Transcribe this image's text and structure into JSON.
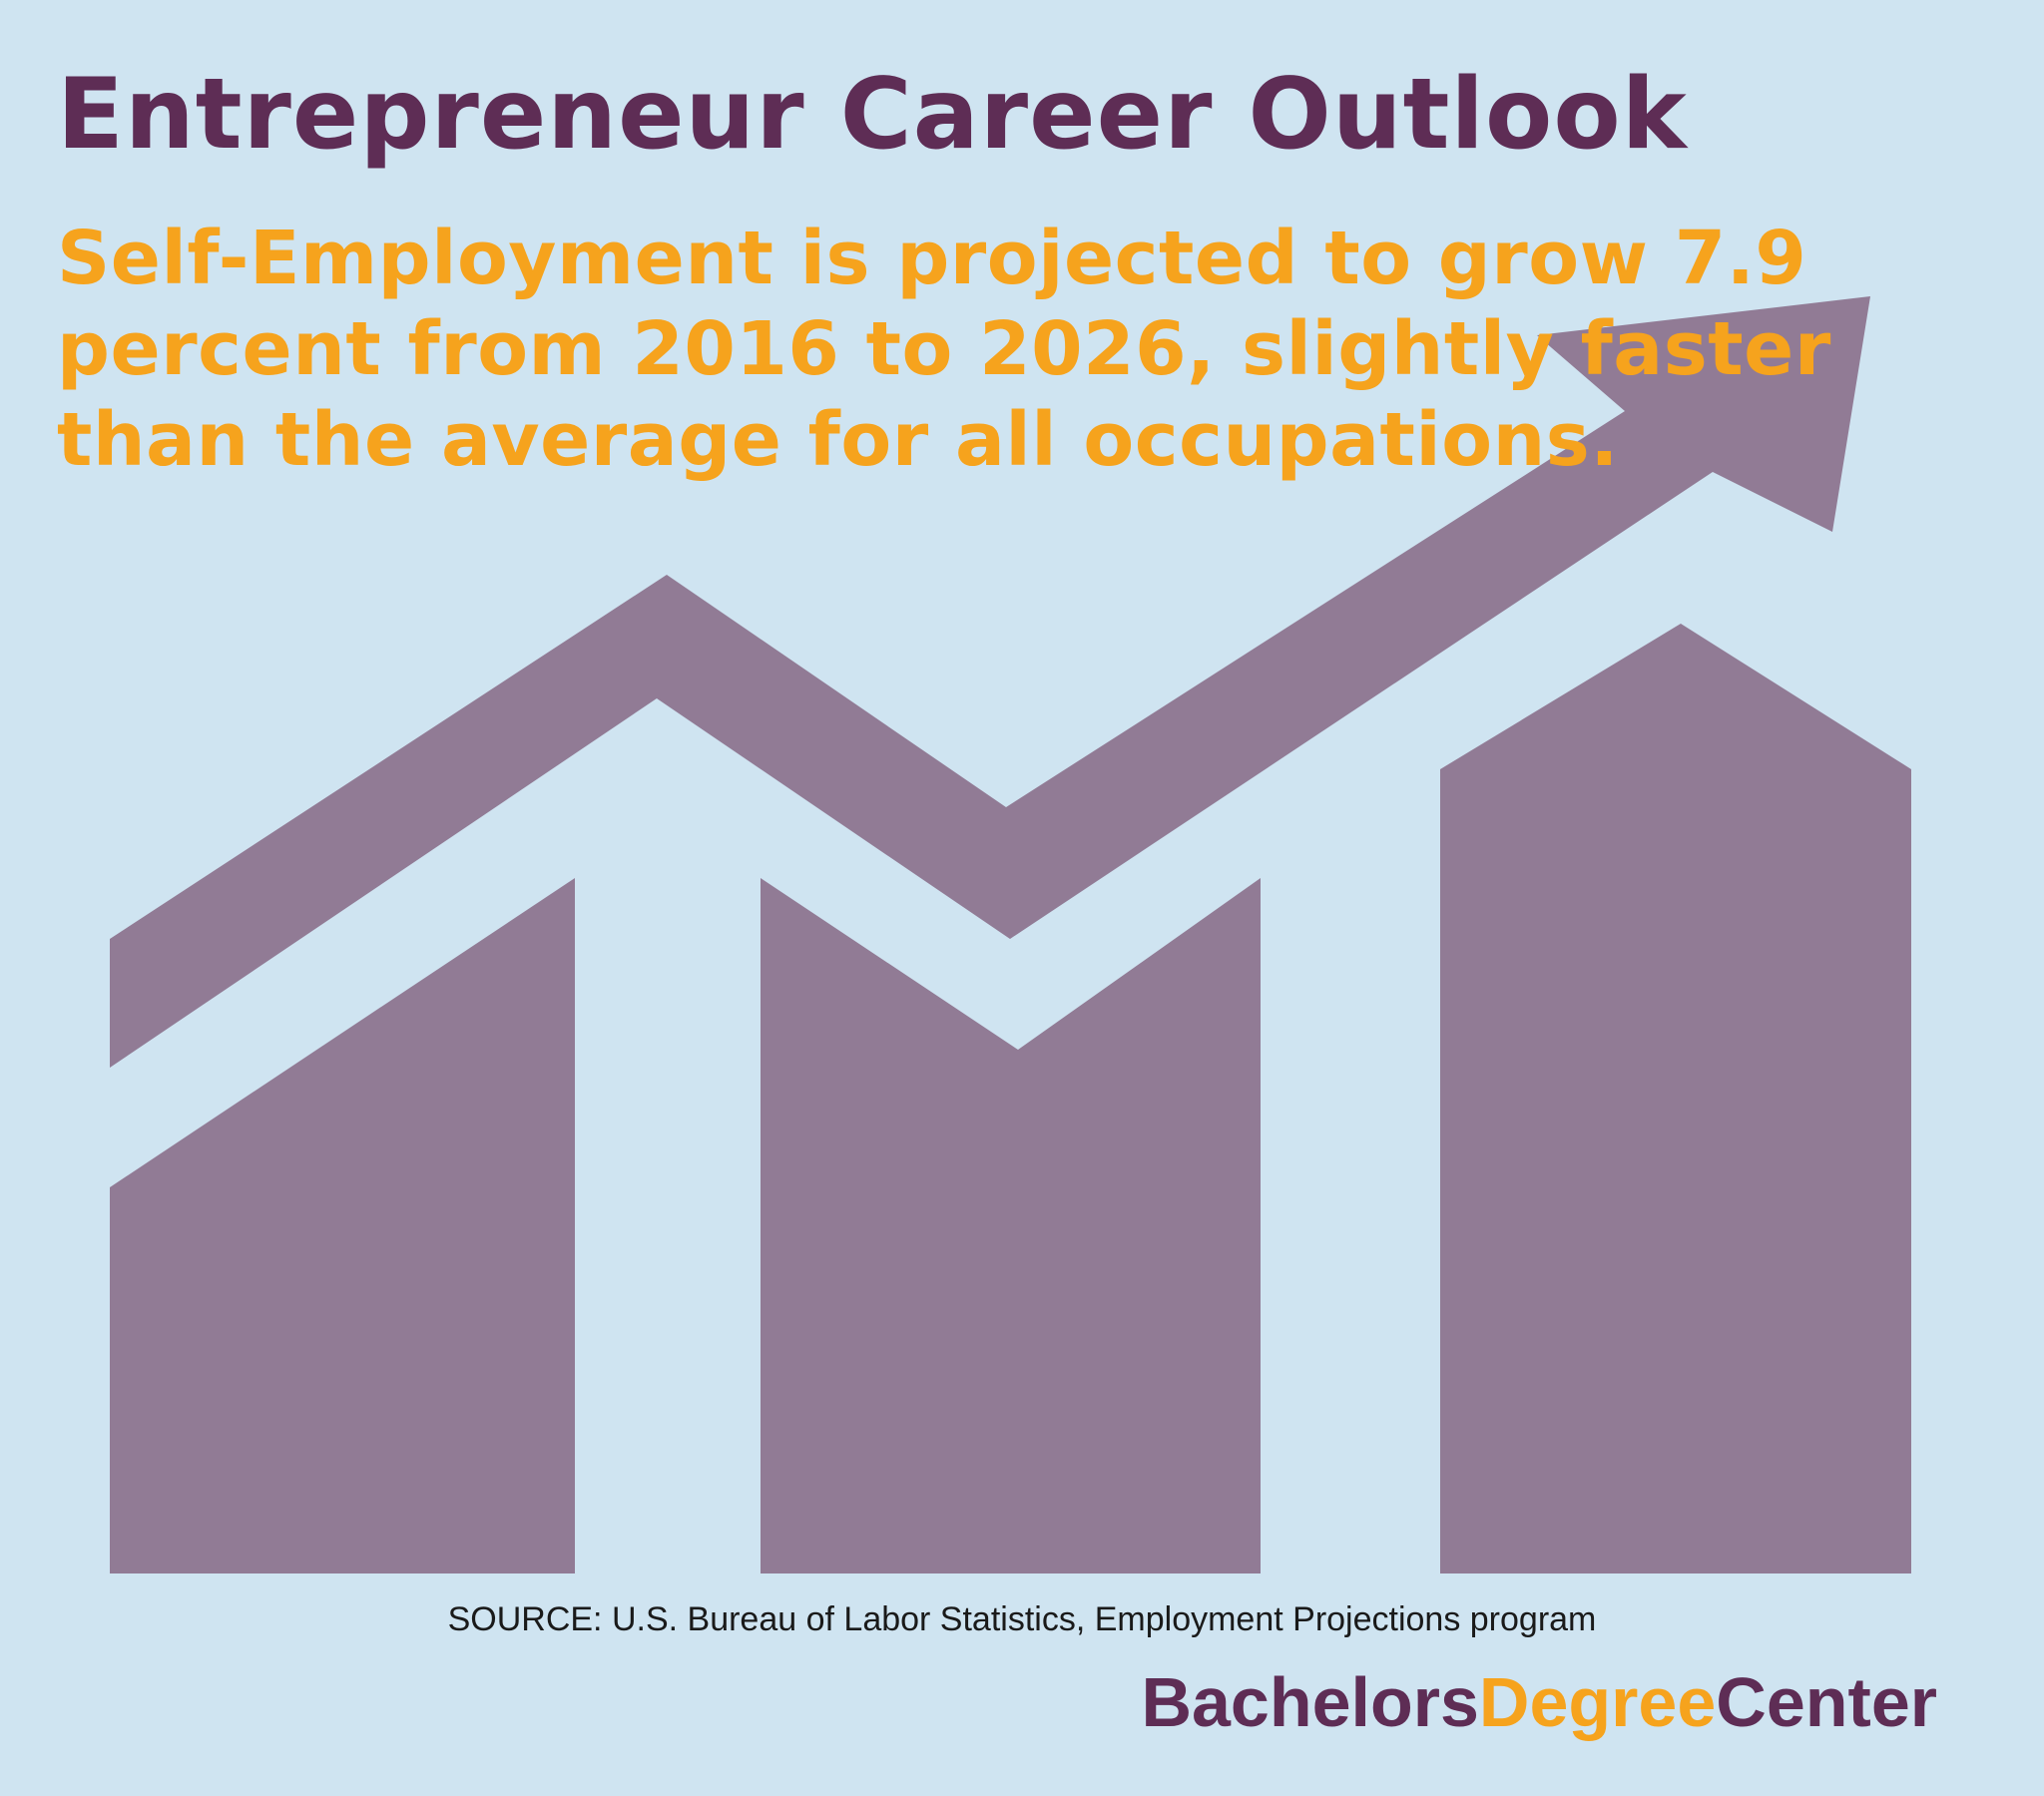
{
  "title": "Entrepreneur Career Outlook",
  "subtitle": "Self-Employment is projected to grow 7.9 percent from 2016 to 2026, slightly faster than the average for all occupations.",
  "source": "SOURCE: U.S. Bureau of Labor Statistics, Employment Projections program",
  "brand": {
    "part1": "Bachelors",
    "part2": "Degree",
    "part3": "Center"
  },
  "colors": {
    "background": "#cfe4f1",
    "title": "#5e2d55",
    "subtitle": "#f6a31d",
    "graphic": "#917b95",
    "source": "#1a1a1a",
    "brand_primary": "#5e2d55",
    "brand_accent": "#f6a31d"
  },
  "icons": {
    "growth_graphic": "growth-chart-icon"
  }
}
